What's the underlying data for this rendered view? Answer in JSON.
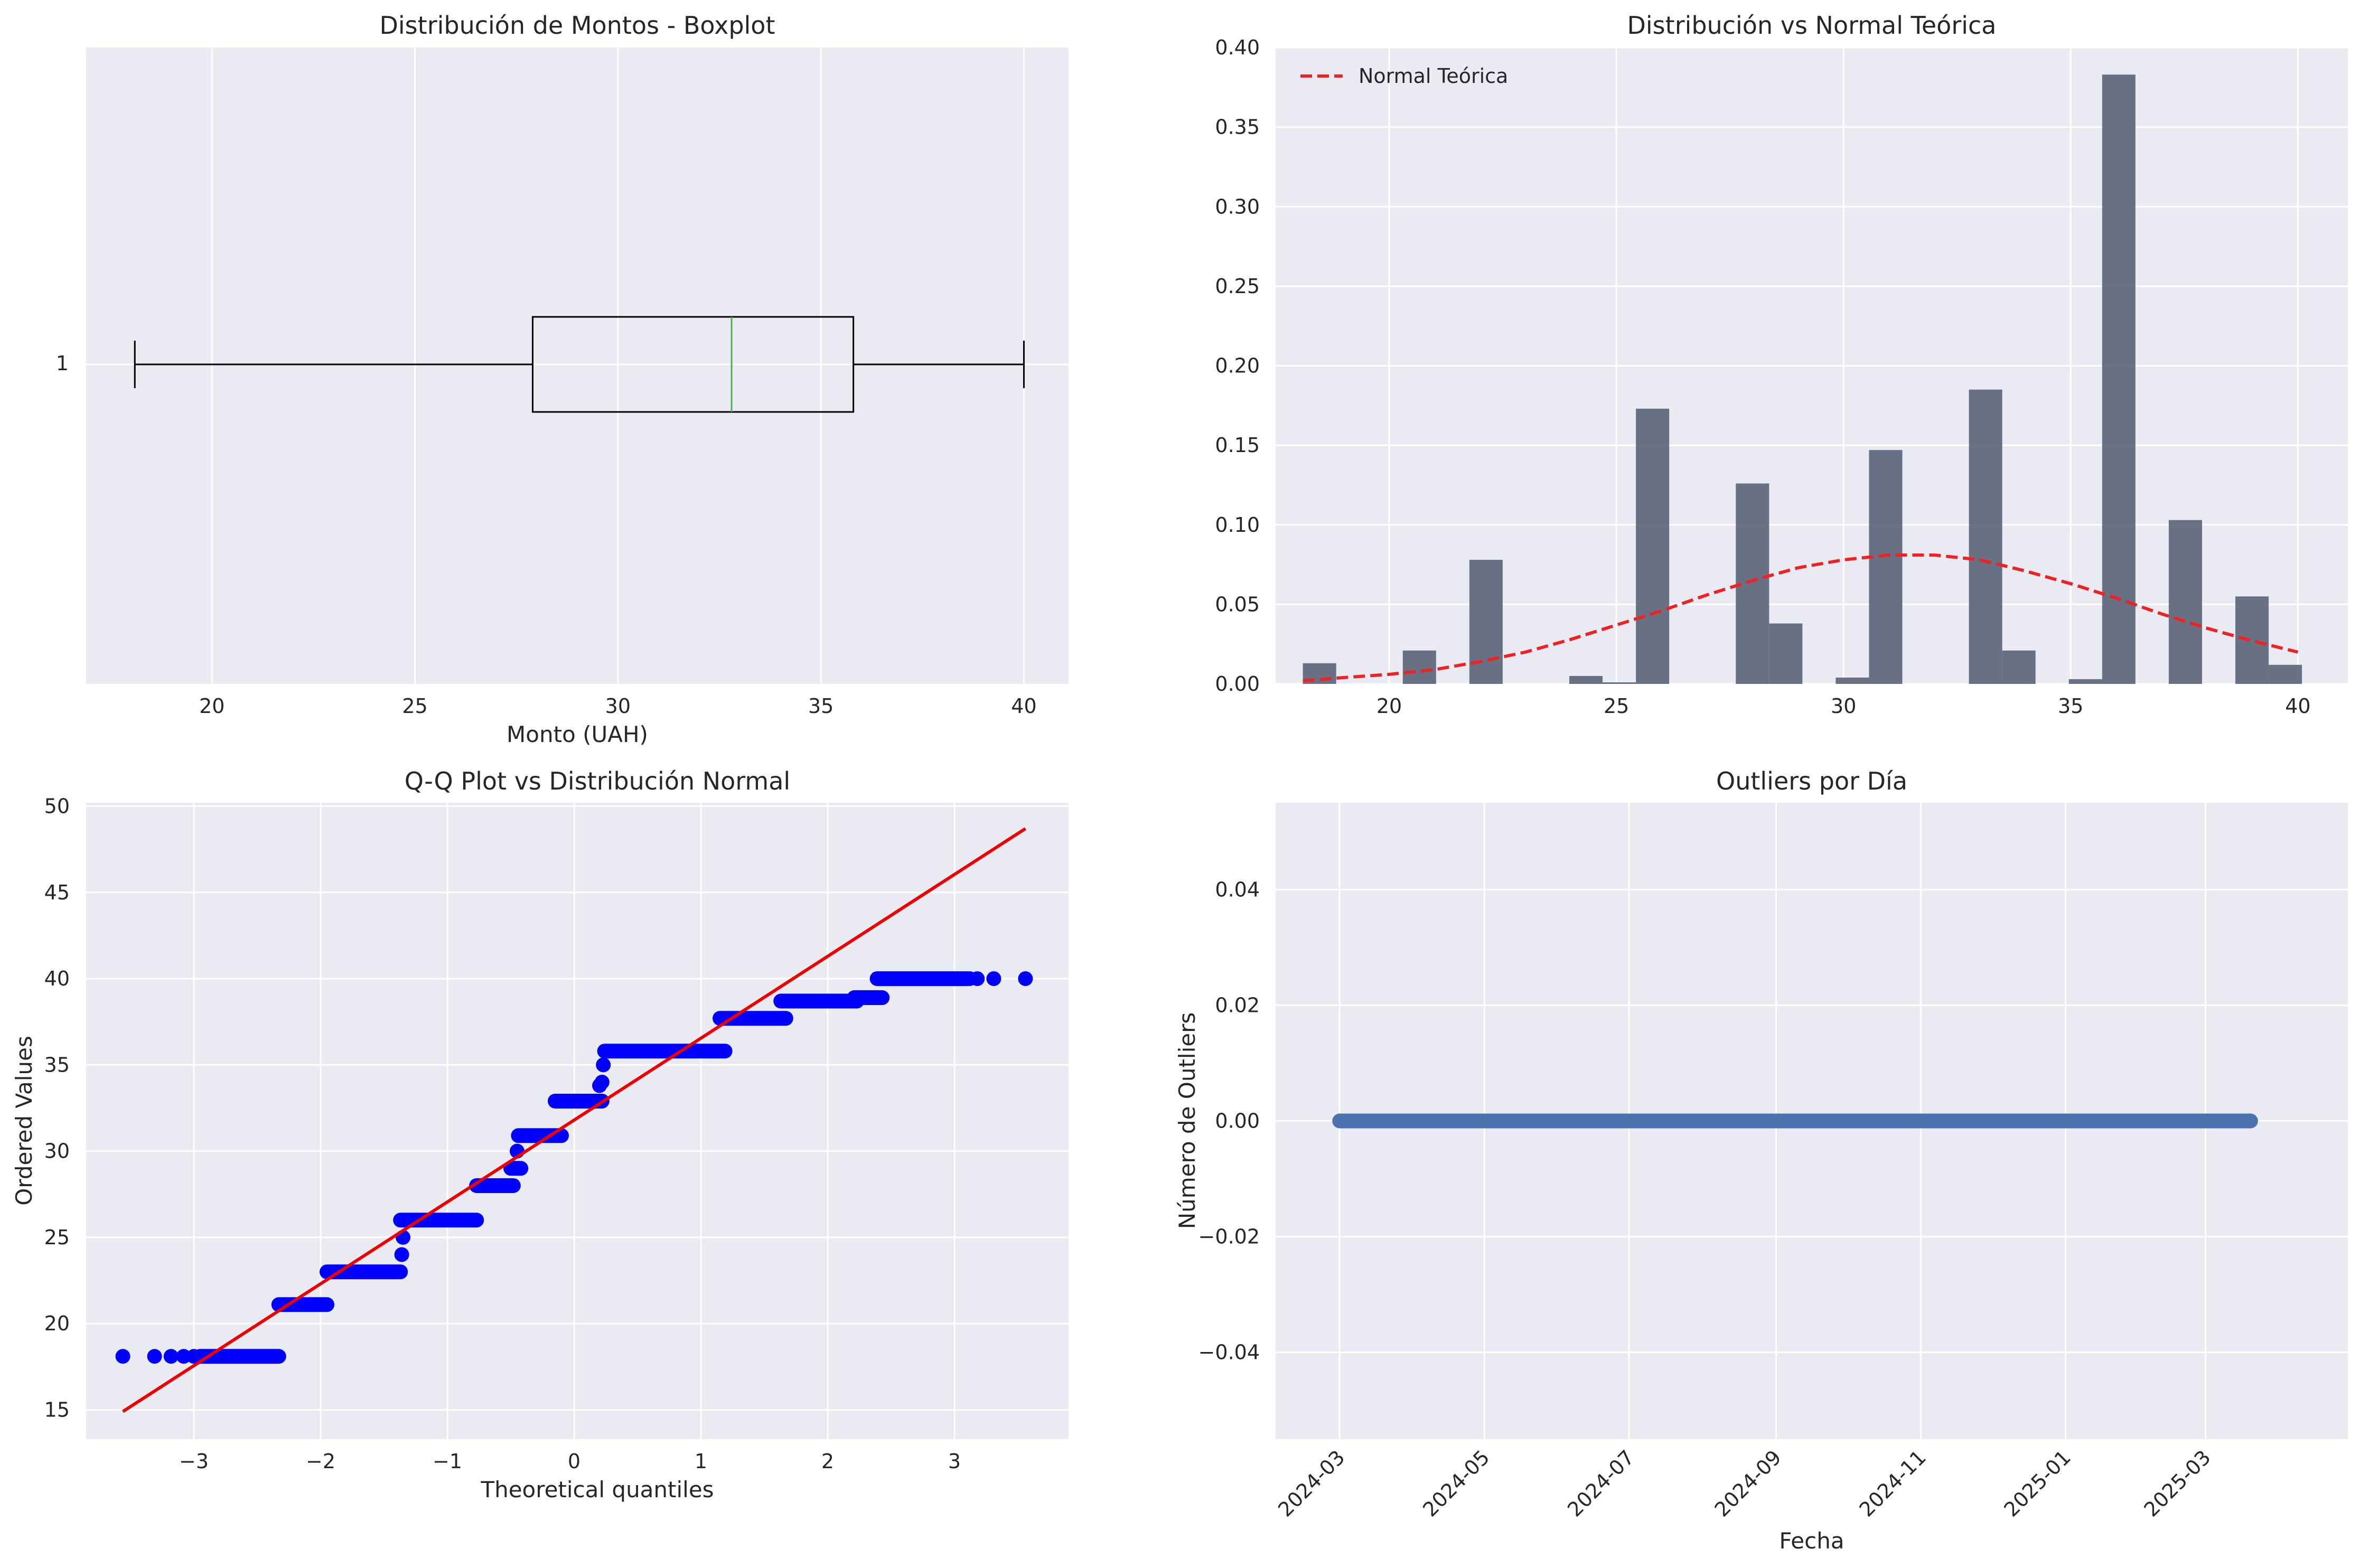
{
  "panels": {
    "boxplot": {
      "title": "Distribución de Montos - Boxplot",
      "xlabel": "Monto (UAH)",
      "ytick": "1"
    },
    "hist": {
      "title": "Distribución vs Normal Teórica",
      "legend": "Normal Teórica"
    },
    "qq": {
      "title": "Q-Q Plot vs Distribución Normal",
      "xlabel": "Theoretical quantiles",
      "ylabel": "Ordered Values"
    },
    "outliers": {
      "title": "Outliers por Día",
      "xlabel": "Fecha",
      "ylabel": "Número de Outliers"
    }
  },
  "colors": {
    "axes_bg": "#eaeaf2",
    "grid": "#ffffff",
    "hist_bar": "#5a6478",
    "normal_line": "#ee2222",
    "qq_points": "#0000ff",
    "qq_line": "#ee0000",
    "outlier_points": "#4c72b0",
    "median": "#4caf50"
  },
  "chart_data": [
    {
      "type": "boxplot",
      "title": "Distribución de Montos - Boxplot",
      "xlabel": "Monto (UAH)",
      "xlim": [
        16.9,
        41.1
      ],
      "xticks": [
        20,
        25,
        30,
        35,
        40
      ],
      "box": {
        "label": "1",
        "whisker_low": 18.1,
        "q1": 27.9,
        "median": 32.8,
        "q3": 35.8,
        "whisker_high": 40.0
      },
      "grid": true
    },
    {
      "type": "bar",
      "title": "Distribución vs Normal Teórica",
      "xlim": [
        17.5,
        41.1
      ],
      "ylim": [
        0,
        0.4
      ],
      "xticks": [
        20,
        25,
        30,
        35,
        40
      ],
      "yticks": [
        0.0,
        0.05,
        0.1,
        0.15,
        0.2,
        0.25,
        0.3,
        0.35,
        0.4
      ],
      "bin_start": 18.1,
      "bin_width": 0.733,
      "densities": [
        0.013,
        0,
        0,
        0.021,
        0,
        0.078,
        0,
        0,
        0.005,
        0.001,
        0.173,
        0,
        0,
        0.126,
        0.038,
        0,
        0.004,
        0.147,
        0,
        0,
        0.185,
        0.021,
        0,
        0.003,
        0.383,
        0,
        0.103,
        0,
        0.055,
        0.012
      ],
      "series": [
        {
          "name": "Normal Teórica",
          "type": "line",
          "x": [
            18.1,
            19,
            20,
            21,
            22,
            23,
            24,
            25,
            26,
            27,
            28,
            29,
            30,
            31,
            32,
            33,
            34,
            35,
            36,
            37,
            38,
            39,
            40
          ],
          "y": [
            0.002,
            0.004,
            0.006,
            0.009,
            0.014,
            0.02,
            0.028,
            0.037,
            0.046,
            0.056,
            0.065,
            0.073,
            0.078,
            0.081,
            0.081,
            0.078,
            0.071,
            0.063,
            0.054,
            0.044,
            0.035,
            0.027,
            0.02
          ]
        }
      ],
      "legend": "top-left",
      "grid": true
    },
    {
      "type": "scatter",
      "title": "Q-Q Plot vs Distribución Normal",
      "xlabel": "Theoretical quantiles",
      "ylabel": "Ordered Values",
      "xlim": [
        -3.85,
        3.9
      ],
      "ylim": [
        13.3,
        50.2
      ],
      "xticks": [
        -3,
        -2,
        -1,
        0,
        1,
        2,
        3
      ],
      "yticks": [
        15,
        20,
        25,
        30,
        35,
        40,
        45,
        50
      ],
      "steps": [
        {
          "from": -2.95,
          "to": -2.33,
          "y": 18.1
        },
        {
          "from": -2.33,
          "to": -1.95,
          "y": 21.1
        },
        {
          "from": -1.95,
          "to": -1.37,
          "y": 23.0
        },
        {
          "from": -1.37,
          "to": -0.77,
          "y": 26.0
        },
        {
          "from": -0.77,
          "to": -0.48,
          "y": 28.0
        },
        {
          "from": -0.5,
          "to": -0.42,
          "y": 29.0
        },
        {
          "from": -0.44,
          "to": -0.1,
          "y": 30.9
        },
        {
          "from": -0.15,
          "to": 0.22,
          "y": 32.9
        },
        {
          "from": 0.24,
          "to": 1.19,
          "y": 35.8
        },
        {
          "from": 1.15,
          "to": 1.67,
          "y": 37.7
        },
        {
          "from": 1.63,
          "to": 2.23,
          "y": 38.7
        },
        {
          "from": 2.21,
          "to": 2.43,
          "y": 38.9
        },
        {
          "from": 2.39,
          "to": 3.1,
          "y": 40.0
        }
      ],
      "extra_points": [
        {
          "x": -3.56,
          "y": 18.1
        },
        {
          "x": -3.31,
          "y": 18.1
        },
        {
          "x": -3.18,
          "y": 18.1
        },
        {
          "x": -3.08,
          "y": 18.1
        },
        {
          "x": -3.0,
          "y": 18.1
        },
        {
          "x": -1.36,
          "y": 24.0
        },
        {
          "x": -1.35,
          "y": 25.0
        },
        {
          "x": -0.45,
          "y": 30.0
        },
        {
          "x": 0.2,
          "y": 33.8
        },
        {
          "x": 0.22,
          "y": 34.0
        },
        {
          "x": 0.23,
          "y": 35.0
        },
        {
          "x": 3.12,
          "y": 40.0
        },
        {
          "x": 3.18,
          "y": 40.0
        },
        {
          "x": 3.31,
          "y": 40.0
        },
        {
          "x": 3.56,
          "y": 40.0
        }
      ],
      "fit_line": {
        "x": [
          -3.56,
          3.56
        ],
        "y": [
          14.9,
          48.7
        ]
      },
      "grid": true
    },
    {
      "type": "scatter",
      "title": "Outliers por Día",
      "xlabel": "Fecha",
      "ylabel": "Número de Outliers",
      "xlim": [
        "2024-02-03",
        "2025-04-30"
      ],
      "ylim": [
        -0.055,
        0.055
      ],
      "xticks": [
        "2024-03",
        "2024-05",
        "2024-07",
        "2024-09",
        "2024-11",
        "2025-01",
        "2025-03"
      ],
      "yticks": [
        -0.04,
        -0.02,
        0.0,
        0.02,
        0.04
      ],
      "x_range": [
        "2024-03-01",
        "2025-03-20"
      ],
      "y_value": 0.0,
      "grid": true
    }
  ]
}
